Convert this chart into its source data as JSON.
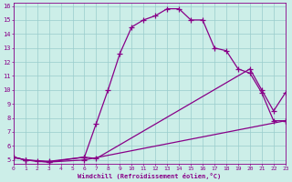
{
  "xlabel": "Windchill (Refroidissement éolien,°C)",
  "bg_color": "#cceee8",
  "line_color": "#880088",
  "grid_color": "#99cccc",
  "xlim": [
    0,
    23
  ],
  "ylim": [
    5,
    16
  ],
  "xticks": [
    0,
    1,
    2,
    3,
    4,
    5,
    6,
    7,
    8,
    9,
    10,
    11,
    12,
    13,
    14,
    15,
    16,
    17,
    18,
    19,
    20,
    21,
    22,
    23
  ],
  "yticks": [
    5,
    6,
    7,
    8,
    9,
    10,
    11,
    12,
    13,
    14,
    15,
    16
  ],
  "series1_x": [
    0,
    1,
    2,
    3,
    6,
    7,
    8,
    9,
    10,
    11,
    12,
    13,
    14,
    15,
    16,
    17,
    18,
    19,
    20,
    21,
    22,
    23
  ],
  "series1_y": [
    5.2,
    5.0,
    4.9,
    4.85,
    5.2,
    7.6,
    10.0,
    12.6,
    14.5,
    15.0,
    15.3,
    15.8,
    15.8,
    15.0,
    15.0,
    13.0,
    12.8,
    11.5,
    11.2,
    9.8,
    7.8,
    7.8
  ],
  "series2_x": [
    0,
    1,
    3,
    6,
    7,
    20,
    21,
    22,
    23
  ],
  "series2_y": [
    5.2,
    5.0,
    4.9,
    5.2,
    5.1,
    11.5,
    10.0,
    8.5,
    9.8
  ],
  "series3_x": [
    0,
    1,
    3,
    6,
    23
  ],
  "series3_y": [
    5.2,
    5.0,
    4.85,
    5.0,
    7.8
  ],
  "marker": "+",
  "markersize": 4,
  "linewidth": 0.9
}
